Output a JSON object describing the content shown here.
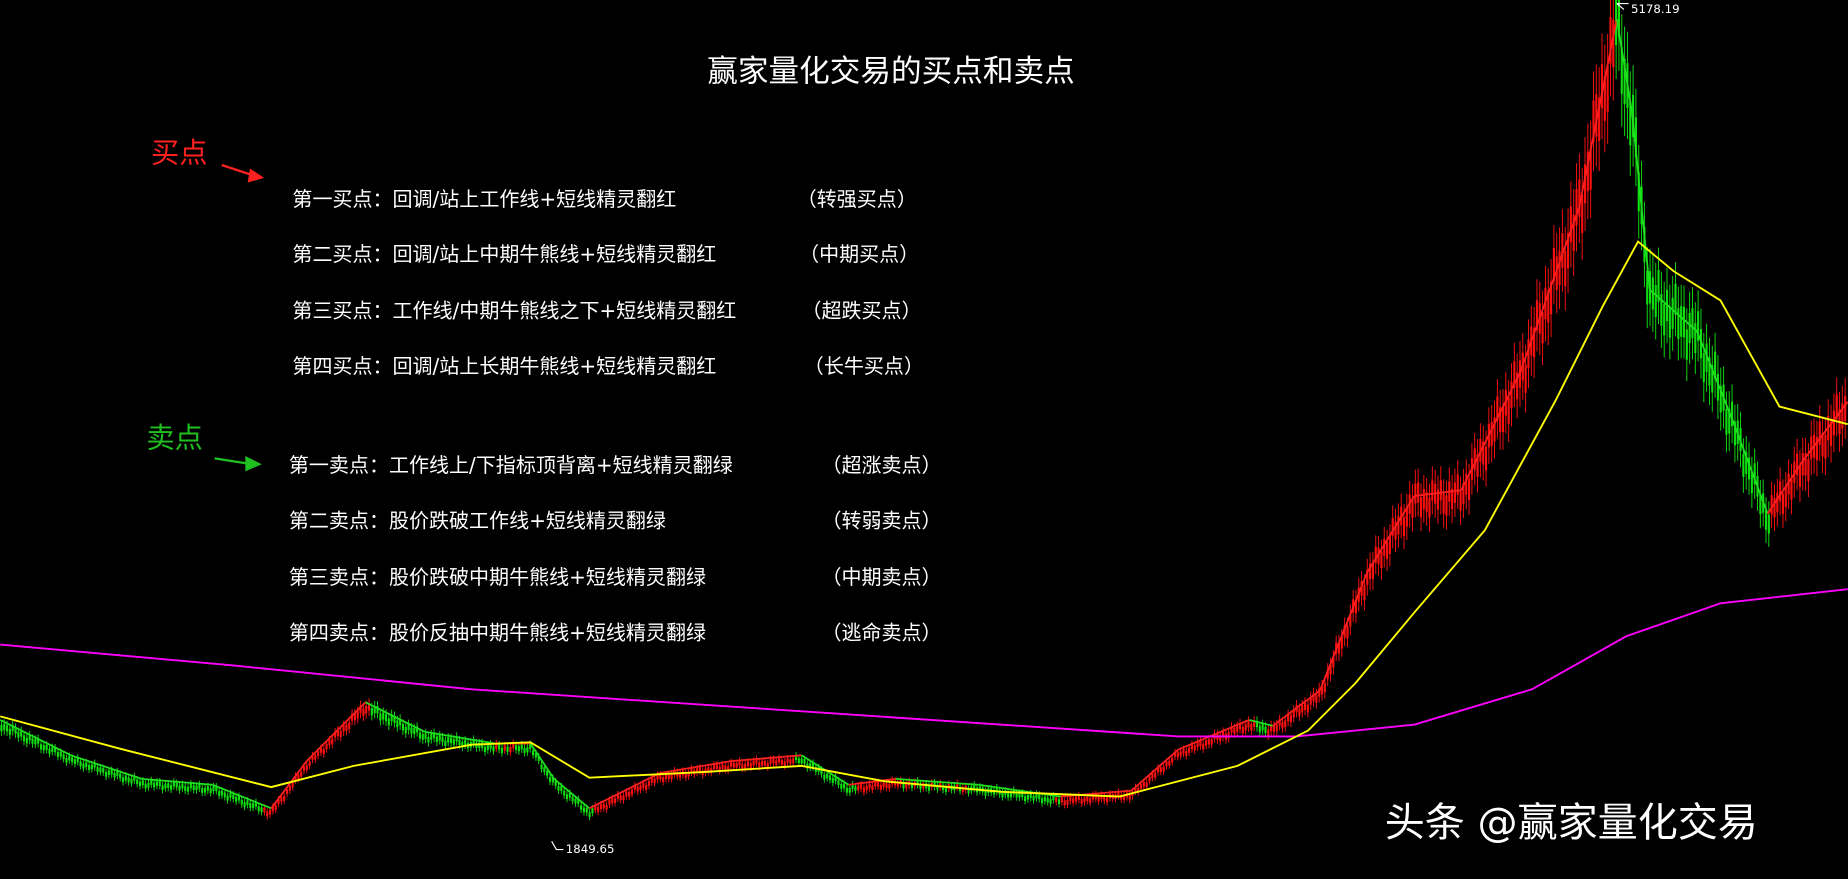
{
  "title": "赢家量化交易的买点和卖点",
  "buy_label": "买点",
  "sell_label": "卖点",
  "buy_points": [
    {
      "text": "第一买点：回调/站上工作线+短线精灵翻红",
      "tag": "（转强买点）"
    },
    {
      "text": "第二买点：回调/站上中期牛熊线+短线精灵翻红",
      "tag": "（中期买点）"
    },
    {
      "text": "第三买点：工作线/中期牛熊线之下+短线精灵翻红",
      "tag": "（超跌买点）"
    },
    {
      "text": "第四买点：回调/站上长期牛熊线+短线精灵翻红",
      "tag": "（长牛买点）"
    }
  ],
  "sell_points": [
    {
      "text": "第一卖点：工作线上/下指标顶背离+短线精灵翻绿",
      "tag": "（超涨卖点）"
    },
    {
      "text": "第二卖点：股价跌破工作线+短线精灵翻绿",
      "tag": "（转弱卖点）"
    },
    {
      "text": "第三卖点：股价跌破中期牛熊线+短线精灵翻绿",
      "tag": "（中期卖点）"
    },
    {
      "text": "第四卖点：股价反抽中期牛熊线+短线精灵翻绿",
      "tag": "（逃命卖点）"
    }
  ],
  "high_label": 5178.19,
  "low_label": 1849.65,
  "watermark": "头条 @赢家量化交易"
}
